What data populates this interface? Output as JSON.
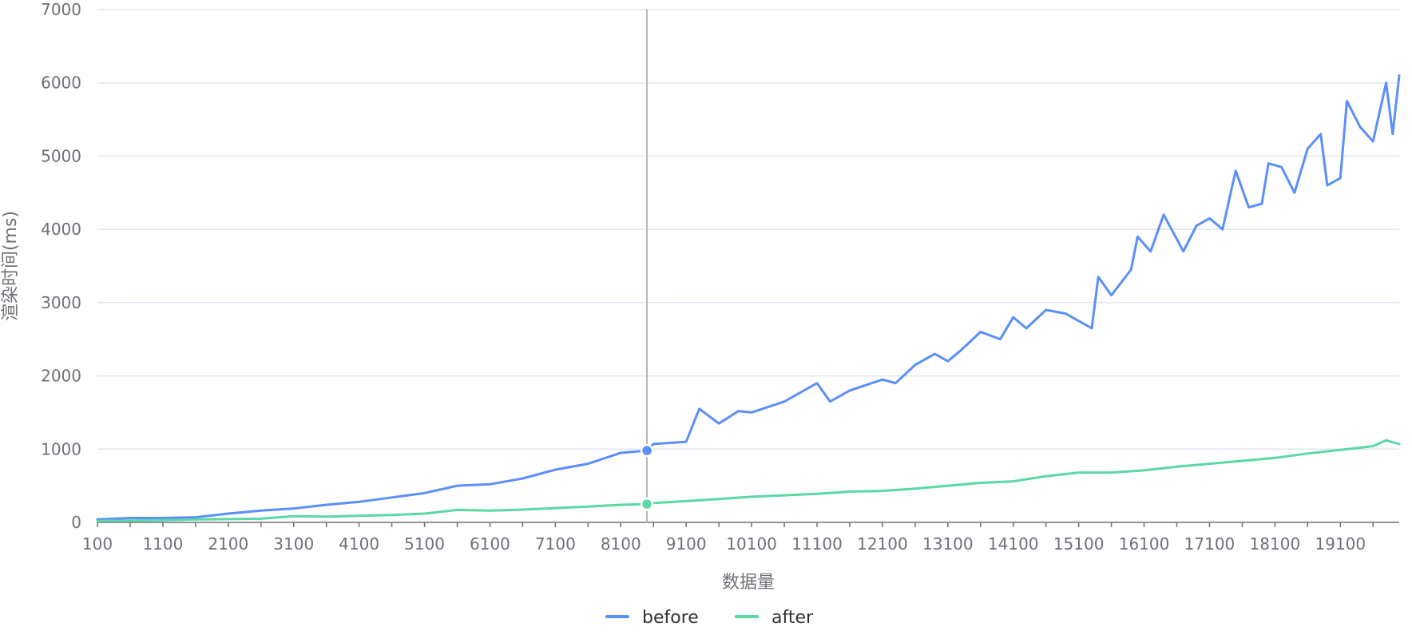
{
  "chart_data": {
    "type": "line",
    "title": "",
    "xlabel": "数据量",
    "ylabel": "渲染时间(ms)",
    "ylim": [
      0,
      7000
    ],
    "yticks": [
      "0",
      "1000",
      "2000",
      "3000",
      "4000",
      "5000",
      "6000",
      "7000"
    ],
    "xtick_labels": [
      "100",
      "1100",
      "2100",
      "3100",
      "4100",
      "5100",
      "6100",
      "7100",
      "8100",
      "9100",
      "10100",
      "11100",
      "12100",
      "13100",
      "14100",
      "15100",
      "16100",
      "17100",
      "18100",
      "19100"
    ],
    "x_start": 100,
    "x_step": 100,
    "x_end": 20000,
    "grid": true,
    "legend_position": "bottom-center",
    "tooltip_x": 8500,
    "series": [
      {
        "name": "before",
        "color": "#5b8ff9",
        "x": [
          100,
          600,
          1100,
          1600,
          2100,
          2600,
          3100,
          3600,
          4100,
          4600,
          5100,
          5600,
          6100,
          6600,
          7100,
          7600,
          8100,
          8500,
          8600,
          9100,
          9300,
          9600,
          9900,
          10100,
          10600,
          11100,
          11300,
          11600,
          12100,
          12300,
          12600,
          12900,
          13100,
          13300,
          13600,
          13900,
          14100,
          14300,
          14600,
          14900,
          15100,
          15300,
          15400,
          15600,
          15900,
          16000,
          16200,
          16400,
          16700,
          16900,
          17100,
          17300,
          17500,
          17700,
          17900,
          18000,
          18200,
          18400,
          18600,
          18800,
          18900,
          19100,
          19200,
          19400,
          19600,
          19800,
          19900,
          20000
        ],
        "y": [
          40,
          60,
          60,
          70,
          120,
          160,
          190,
          240,
          280,
          340,
          400,
          500,
          520,
          600,
          720,
          800,
          950,
          980,
          1070,
          1100,
          1550,
          1350,
          1520,
          1500,
          1650,
          1900,
          1650,
          1800,
          1950,
          1900,
          2150,
          2300,
          2200,
          2350,
          2600,
          2500,
          2800,
          2650,
          2900,
          2850,
          2750,
          2650,
          3350,
          3100,
          3450,
          3900,
          3700,
          4200,
          3700,
          4050,
          4150,
          4000,
          4800,
          4300,
          4350,
          4900,
          4850,
          4500,
          5100,
          5300,
          4600,
          4700,
          5750,
          5400,
          5200,
          6000,
          5300,
          6100
        ]
      },
      {
        "name": "after",
        "color": "#5ad8a6",
        "x": [
          100,
          600,
          1100,
          1600,
          2100,
          2600,
          3100,
          3600,
          4100,
          4600,
          5100,
          5600,
          6100,
          6600,
          7100,
          7600,
          8100,
          8500,
          8600,
          9100,
          9600,
          10100,
          10600,
          11100,
          11600,
          12100,
          12600,
          13100,
          13600,
          14100,
          14600,
          15100,
          15600,
          16100,
          16600,
          17100,
          17600,
          18100,
          18600,
          19100,
          19600,
          19800,
          20000
        ],
        "y": [
          20,
          25,
          30,
          40,
          45,
          50,
          85,
          80,
          90,
          100,
          120,
          170,
          160,
          175,
          195,
          215,
          240,
          250,
          265,
          290,
          320,
          350,
          370,
          390,
          420,
          430,
          460,
          500,
          540,
          560,
          630,
          680,
          680,
          710,
          760,
          800,
          840,
          880,
          940,
          990,
          1040,
          1120,
          1070
        ]
      }
    ]
  }
}
